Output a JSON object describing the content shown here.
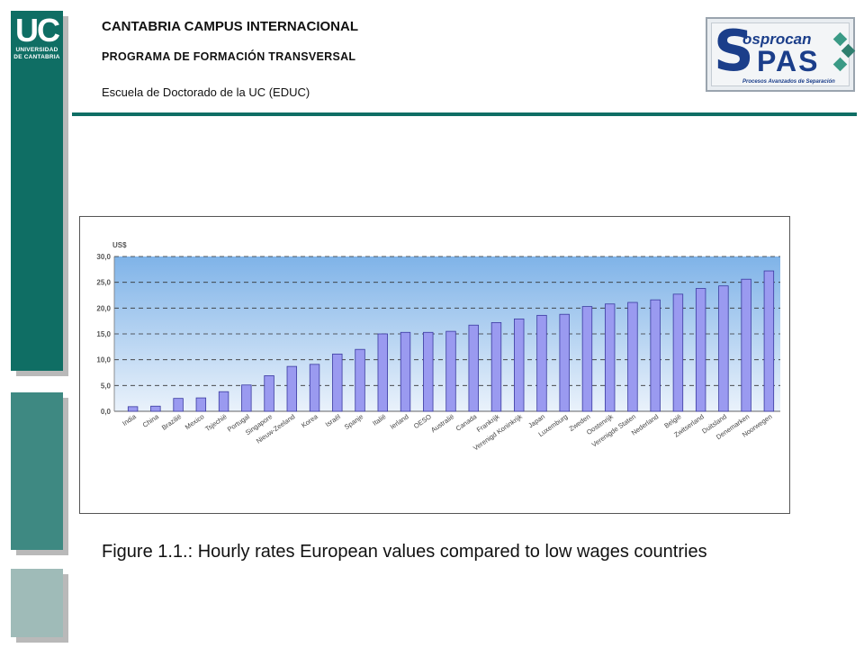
{
  "header": {
    "campus": "CANTABRIA CAMPUS INTERNACIONAL",
    "program": "PROGRAMA DE FORMACIÓN  TRANSVERSAL",
    "school": "Escuela de Doctorado de la UC (EDUC)"
  },
  "uc_logo": {
    "letters": "UC",
    "line1": "UNIVERSIDAD",
    "line2": "DE CANTABRIA"
  },
  "spas_logo": {
    "top": "osprocan",
    "big_s": "S",
    "pas": "PAS",
    "subtitle": "Procesos Avanzados de Separación"
  },
  "colors": {
    "uc_green": "#0f6e64",
    "plot_gradient_top": "#7fb3e8",
    "plot_gradient_bottom": "#eaf2fb",
    "bar_fill": "#9a9af0",
    "bar_stroke": "#3a3aa0"
  },
  "chart_data": {
    "type": "bar",
    "title": "",
    "xlabel": "",
    "ylabel": "US$",
    "ylim": [
      0,
      30
    ],
    "yticks": [
      "0,0",
      "5,0",
      "10,0",
      "15,0",
      "20,0",
      "25,0",
      "30,0"
    ],
    "grid": "dashed horizontal",
    "categories": [
      "India",
      "China",
      "Brazilië",
      "Mexico",
      "Tsjechië",
      "Portugal",
      "Singapore",
      "Nieuw-Zeeland",
      "Korea",
      "Israël",
      "Spanje",
      "Italië",
      "Ierland",
      "OESO",
      "Australië",
      "Canada",
      "Frankrijk",
      "Verenigd Koninkrijk",
      "Japan",
      "Luxemburg",
      "Zweden",
      "Oostenrijk",
      "Verenigde Staten",
      "Nederland",
      "België",
      "Zwitserland",
      "Duitsland",
      "Denemarken",
      "Noorwegen"
    ],
    "values": [
      0.9,
      1.0,
      2.5,
      2.6,
      3.8,
      5.1,
      6.9,
      8.7,
      9.1,
      11.1,
      12.0,
      15.0,
      15.3,
      15.3,
      15.5,
      16.7,
      17.2,
      17.9,
      18.6,
      18.8,
      20.3,
      20.8,
      21.1,
      21.6,
      22.7,
      23.8,
      24.3,
      25.6,
      27.2
    ]
  },
  "caption": "Figure 1.1.: Hourly rates European values compared to low wages countries"
}
